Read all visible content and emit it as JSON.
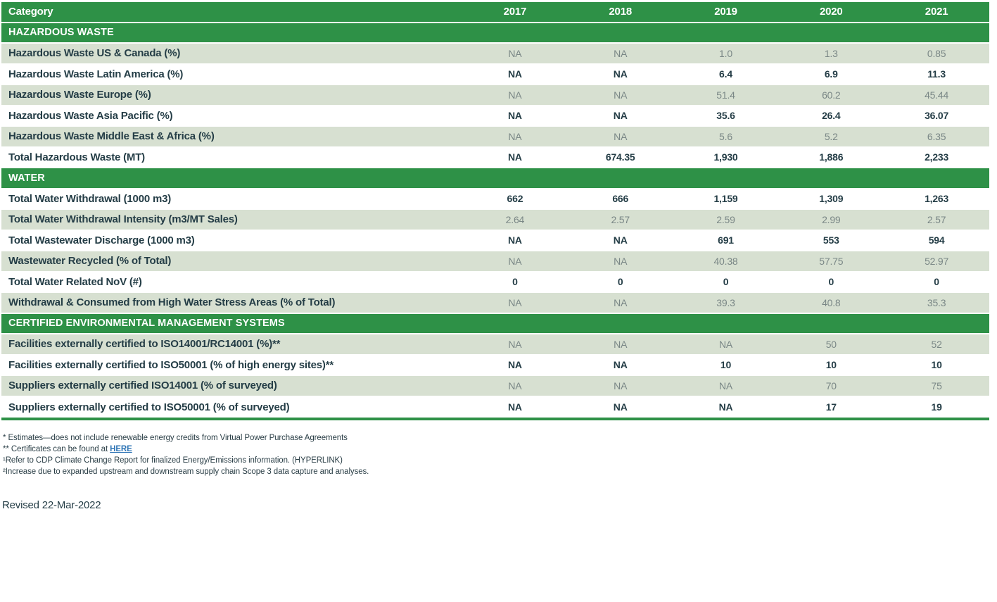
{
  "colors": {
    "header_green": "#2E9147",
    "row_light_green": "#D7E0D1",
    "row_white": "#FFFFFF",
    "dark_text": "#243D46",
    "muted_value_text": "#7A8786",
    "link_blue": "#2E74B5"
  },
  "table": {
    "header": {
      "category_label": "Category",
      "years": [
        "2017",
        "2018",
        "2019",
        "2020",
        "2021"
      ]
    },
    "sections": [
      {
        "title": "HAZARDOUS WASTE",
        "rows": [
          {
            "label": "Hazardous Waste US & Canada (%)",
            "values": [
              "NA",
              "NA",
              "1.0",
              "1.3",
              "0.85"
            ]
          },
          {
            "label": "Hazardous Waste Latin America (%)",
            "values": [
              "NA",
              "NA",
              "6.4",
              "6.9",
              "11.3"
            ]
          },
          {
            "label": "Hazardous Waste Europe (%)",
            "values": [
              "NA",
              "NA",
              "51.4",
              "60.2",
              "45.44"
            ]
          },
          {
            "label": "Hazardous Waste Asia Pacific (%)",
            "values": [
              "NA",
              "NA",
              "35.6",
              "26.4",
              "36.07"
            ]
          },
          {
            "label": "Hazardous Waste Middle East & Africa (%)",
            "values": [
              "NA",
              "NA",
              "5.6",
              "5.2",
              "6.35"
            ]
          },
          {
            "label": "Total Hazardous Waste (MT)",
            "values": [
              "NA",
              "674.35",
              "1,930",
              "1,886",
              "2,233"
            ]
          }
        ]
      },
      {
        "title": "WATER",
        "rows": [
          {
            "label": "Total Water Withdrawal (1000 m3)",
            "values": [
              "662",
              "666",
              "1,159",
              "1,309",
              "1,263"
            ]
          },
          {
            "label": "Total Water Withdrawal Intensity (m3/MT Sales)",
            "values": [
              "2.64",
              "2.57",
              "2.59",
              "2.99",
              "2.57"
            ]
          },
          {
            "label": "Total Wastewater Discharge (1000 m3)",
            "values": [
              "NA",
              "NA",
              "691",
              "553",
              "594"
            ]
          },
          {
            "label": "Wastewater Recycled (% of Total)",
            "values": [
              "NA",
              "NA",
              "40.38",
              "57.75",
              "52.97"
            ]
          },
          {
            "label": "Total Water Related NoV (#)",
            "values": [
              "0",
              "0",
              "0",
              "0",
              "0"
            ]
          },
          {
            "label": "Withdrawal & Consumed from High Water Stress Areas (% of Total)",
            "values": [
              "NA",
              "NA",
              "39.3",
              "40.8",
              "35.3"
            ]
          }
        ]
      },
      {
        "title": "CERTIFIED ENVIRONMENTAL MANAGEMENT SYSTEMS",
        "rows": [
          {
            "label": "Facilities externally certified to ISO14001/RC14001 (%)**",
            "values": [
              "NA",
              "NA",
              "NA",
              "50",
              "52"
            ]
          },
          {
            "label": "Facilities externally certified to ISO50001 (% of high energy sites)**",
            "values": [
              "NA",
              "NA",
              "10",
              "10",
              "10"
            ]
          },
          {
            "label": "Suppliers externally certified ISO14001 (% of surveyed)",
            "values": [
              "NA",
              "NA",
              "NA",
              "70",
              "75"
            ]
          },
          {
            "label": "Suppliers externally certified to ISO50001 (% of surveyed)",
            "values": [
              "NA",
              "NA",
              "NA",
              "17",
              "19"
            ]
          }
        ]
      }
    ]
  },
  "footnotes": [
    {
      "text": "* Estimates—does not include renewable energy credits from Virtual Power Purchase Agreements",
      "link": ""
    },
    {
      "text": "** Certificates can be found at ",
      "link": "HERE"
    },
    {
      "text": "¹Refer to CDP Climate Change Report for finalized Energy/Emissions information. (HYPERLINK)",
      "link": ""
    },
    {
      "text": "²Increase due to expanded upstream and downstream supply chain Scope 3 data capture and analyses.",
      "link": ""
    }
  ],
  "revised": "Revised 22-Mar-2022"
}
